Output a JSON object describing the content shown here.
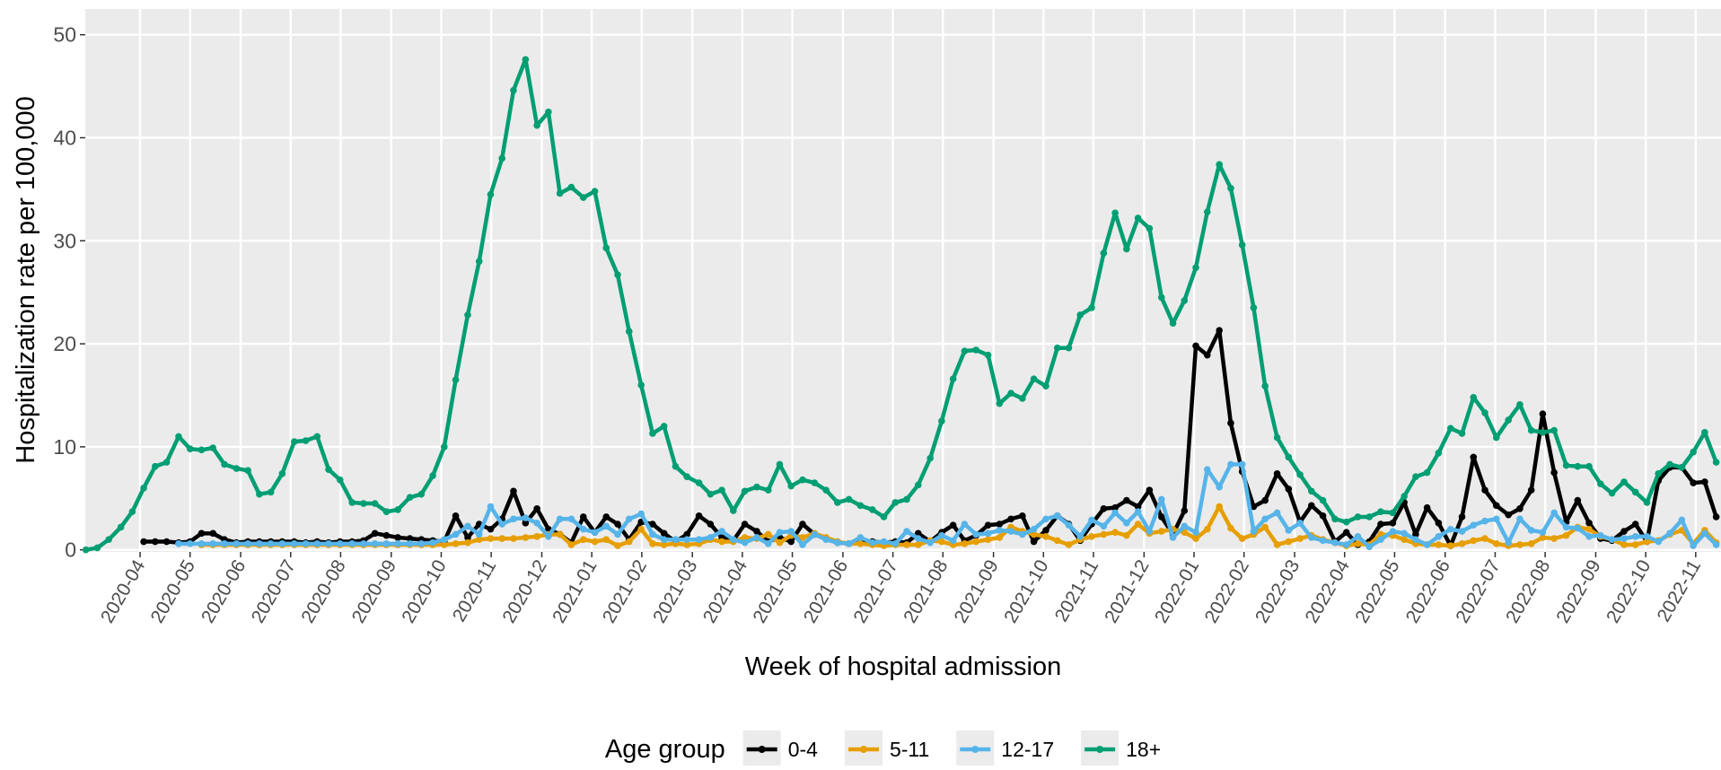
{
  "chart_data": {
    "type": "line",
    "x_label": "Week of hospital admission",
    "y_label": "Hospitalization rate per 100,000",
    "legend_title": "Age group",
    "legend_position": "bottom",
    "grid": true,
    "xlim": [
      2020.159,
      2022.875
    ],
    "ylim": [
      -0.2,
      52.5
    ],
    "yticks": [
      0,
      10,
      20,
      30,
      40,
      50
    ],
    "xticks": [
      {
        "value": 2020.25,
        "label": "2020-04"
      },
      {
        "value": 2020.333,
        "label": "2020-05"
      },
      {
        "value": 2020.417,
        "label": "2020-06"
      },
      {
        "value": 2020.5,
        "label": "2020-07"
      },
      {
        "value": 2020.583,
        "label": "2020-08"
      },
      {
        "value": 2020.667,
        "label": "2020-09"
      },
      {
        "value": 2020.75,
        "label": "2020-10"
      },
      {
        "value": 2020.833,
        "label": "2020-11"
      },
      {
        "value": 2020.917,
        "label": "2020-12"
      },
      {
        "value": 2021,
        "label": "2021-01"
      },
      {
        "value": 2021.083,
        "label": "2021-02"
      },
      {
        "value": 2021.167,
        "label": "2021-03"
      },
      {
        "value": 2021.25,
        "label": "2021-04"
      },
      {
        "value": 2021.333,
        "label": "2021-05"
      },
      {
        "value": 2021.417,
        "label": "2021-06"
      },
      {
        "value": 2021.5,
        "label": "2021-07"
      },
      {
        "value": 2021.583,
        "label": "2021-08"
      },
      {
        "value": 2021.667,
        "label": "2021-09"
      },
      {
        "value": 2021.75,
        "label": "2021-10"
      },
      {
        "value": 2021.833,
        "label": "2021-11"
      },
      {
        "value": 2021.917,
        "label": "2021-12"
      },
      {
        "value": 2022,
        "label": "2022-01"
      },
      {
        "value": 2022.083,
        "label": "2022-02"
      },
      {
        "value": 2022.167,
        "label": "2022-03"
      },
      {
        "value": 2022.25,
        "label": "2022-04"
      },
      {
        "value": 2022.333,
        "label": "2022-05"
      },
      {
        "value": 2022.417,
        "label": "2022-06"
      },
      {
        "value": 2022.5,
        "label": "2022-07"
      },
      {
        "value": 2022.583,
        "label": "2022-08"
      },
      {
        "value": 2022.667,
        "label": "2022-09"
      },
      {
        "value": 2022.75,
        "label": "2022-10"
      },
      {
        "value": 2022.833,
        "label": "2022-11"
      }
    ],
    "x": [
      2020.16,
      2020.179,
      2020.198,
      2020.218,
      2020.237,
      2020.256,
      2020.275,
      2020.294,
      2020.314,
      2020.333,
      2020.352,
      2020.371,
      2020.39,
      2020.41,
      2020.429,
      2020.448,
      2020.467,
      2020.486,
      2020.506,
      2020.525,
      2020.544,
      2020.563,
      2020.582,
      2020.602,
      2020.621,
      2020.64,
      2020.659,
      2020.678,
      2020.698,
      2020.717,
      2020.736,
      2020.755,
      2020.774,
      2020.794,
      2020.813,
      2020.832,
      2020.851,
      2020.87,
      2020.89,
      2020.909,
      2020.928,
      2020.947,
      2020.966,
      2020.986,
      2021.005,
      2021.024,
      2021.043,
      2021.062,
      2021.082,
      2021.101,
      2021.12,
      2021.139,
      2021.158,
      2021.178,
      2021.197,
      2021.216,
      2021.235,
      2021.254,
      2021.274,
      2021.293,
      2021.312,
      2021.331,
      2021.35,
      2021.37,
      2021.389,
      2021.408,
      2021.427,
      2021.446,
      2021.466,
      2021.485,
      2021.504,
      2021.523,
      2021.542,
      2021.562,
      2021.581,
      2021.6,
      2021.619,
      2021.638,
      2021.658,
      2021.677,
      2021.696,
      2021.715,
      2021.734,
      2021.754,
      2021.773,
      2021.792,
      2021.811,
      2021.83,
      2021.85,
      2021.869,
      2021.888,
      2021.907,
      2021.926,
      2021.946,
      2021.965,
      2021.984,
      2022.003,
      2022.022,
      2022.042,
      2022.061,
      2022.08,
      2022.099,
      2022.118,
      2022.138,
      2022.157,
      2022.176,
      2022.195,
      2022.214,
      2022.234,
      2022.253,
      2022.272,
      2022.291,
      2022.31,
      2022.33,
      2022.349,
      2022.368,
      2022.387,
      2022.406,
      2022.426,
      2022.445,
      2022.464,
      2022.483,
      2022.502,
      2022.522,
      2022.541,
      2022.56,
      2022.579,
      2022.598,
      2022.618,
      2022.637,
      2022.656,
      2022.675,
      2022.694,
      2022.714,
      2022.733,
      2022.752,
      2022.771,
      2022.79,
      2022.81,
      2022.829,
      2022.848,
      2022.867
    ],
    "series": [
      {
        "name": "0-4",
        "color": "#000000",
        "values": [
          null,
          null,
          null,
          null,
          null,
          0.8,
          0.8,
          0.8,
          0.7,
          0.8,
          1.6,
          1.6,
          1,
          0.7,
          0.8,
          0.8,
          0.8,
          0.8,
          0.8,
          0.7,
          0.8,
          0.7,
          0.8,
          0.8,
          0.9,
          1.6,
          1.4,
          1.2,
          1.1,
          1,
          0.9,
          0.8,
          3.3,
          1.2,
          2.5,
          2,
          3,
          5.7,
          2.6,
          4,
          2,
          1.5,
          0.7,
          3.2,
          1.7,
          3.2,
          2.5,
          1,
          2.7,
          2.5,
          1.6,
          0.8,
          1.5,
          3.3,
          2.5,
          1.2,
          0.9,
          2.5,
          1.8,
          0.8,
          1.2,
          0.8,
          2.5,
          1.5,
          1.1,
          0.7,
          0.6,
          0.8,
          0.8,
          0.7,
          0.8,
          0.7,
          1.6,
          0.8,
          1.7,
          2.4,
          0.9,
          1.4,
          2.4,
          2.5,
          3,
          3.3,
          0.8,
          1.9,
          3.3,
          2.5,
          0.9,
          2.5,
          4,
          4.1,
          4.8,
          4.2,
          5.8,
          3.2,
          1.5,
          3.8,
          19.8,
          18.9,
          21.3,
          12.3,
          7.6,
          4.2,
          4.8,
          7.4,
          5.9,
          2.7,
          4.3,
          3.3,
          0.8,
          1.7,
          0.5,
          0.8,
          2.5,
          2.6,
          4.6,
          1.5,
          4.1,
          2.6,
          0.4,
          3.2,
          9,
          5.8,
          4.3,
          3.4,
          4,
          5.8,
          13.2,
          7.5,
          2.7,
          4.8,
          2.6,
          1.1,
          0.9,
          1.8,
          2.5,
          0.8,
          6.7,
          8,
          8,
          6.5,
          6.6,
          3.2
        ]
      },
      {
        "name": "5-11",
        "color": "#E69F00",
        "values": [
          null,
          null,
          null,
          null,
          null,
          null,
          null,
          null,
          null,
          null,
          0.5,
          0.5,
          0.5,
          0.5,
          0.5,
          0.5,
          0.5,
          0.5,
          0.5,
          0.5,
          0.5,
          0.5,
          0.5,
          0.5,
          0.5,
          0.5,
          0.5,
          0.5,
          0.5,
          0.5,
          0.5,
          0.5,
          0.6,
          0.7,
          1,
          1.1,
          1.1,
          1.1,
          1.2,
          1.3,
          1.5,
          1.5,
          0.5,
          1,
          0.8,
          1,
          0.4,
          0.8,
          2,
          0.6,
          0.5,
          0.6,
          0.5,
          0.6,
          1,
          0.8,
          0.8,
          1.2,
          1.1,
          1.5,
          0.7,
          1.4,
          1.2,
          1.6,
          1.2,
          0.8,
          0.6,
          0.6,
          0.5,
          0.4,
          0.5,
          0.5,
          0.5,
          0.9,
          0.8,
          0.5,
          0.6,
          0.8,
          1,
          1.2,
          2.2,
          1.8,
          1.5,
          1.3,
          0.9,
          0.5,
          1,
          1.3,
          1.5,
          1.7,
          1.4,
          2.5,
          1.6,
          1.8,
          2,
          1.7,
          1.1,
          2,
          4.2,
          2.1,
          1.1,
          1.5,
          2.2,
          0.5,
          0.8,
          1.1,
          1.4,
          1,
          0.7,
          0.4,
          0.6,
          0.5,
          1.5,
          1.4,
          1,
          0.6,
          0.5,
          0.5,
          0.4,
          0.6,
          0.9,
          1.1,
          0.6,
          0.4,
          0.5,
          0.6,
          1.2,
          1.1,
          1.4,
          2.2,
          2,
          1.3,
          1,
          0.5,
          0.5,
          0.8,
          0.9,
          1.5,
          1.9,
          0.6,
          1.9,
          0.7
        ]
      },
      {
        "name": "12-17",
        "color": "#56B4E9",
        "values": [
          null,
          null,
          null,
          null,
          null,
          null,
          null,
          null,
          0.6,
          0.6,
          0.6,
          0.6,
          0.6,
          0.6,
          0.6,
          0.6,
          0.6,
          0.6,
          0.6,
          0.6,
          0.6,
          0.6,
          0.6,
          0.6,
          0.6,
          0.6,
          0.6,
          0.6,
          0.6,
          0.6,
          0.7,
          1,
          1.5,
          2.3,
          1.5,
          4.2,
          2.5,
          3,
          3.1,
          2.6,
          1.3,
          3,
          3,
          2,
          1.7,
          2.3,
          1.5,
          3,
          3.5,
          1.5,
          1,
          1,
          1,
          1,
          1.2,
          1.8,
          1,
          0.7,
          1.2,
          0.6,
          1.7,
          1.8,
          0.5,
          1.5,
          1,
          0.7,
          0.6,
          1.2,
          0.7,
          0.8,
          0.6,
          1.8,
          1.1,
          0.7,
          1.4,
          0.9,
          2.5,
          1.5,
          1.6,
          1.9,
          1.8,
          1.5,
          2,
          3,
          3.3,
          2.4,
          1.3,
          2.9,
          2.3,
          3.6,
          2.6,
          3.7,
          1.8,
          4.9,
          1.2,
          2.3,
          1.7,
          7.8,
          6.1,
          8.3,
          8.3,
          1.8,
          3,
          3.6,
          1.9,
          2.6,
          1.2,
          0.9,
          0.7,
          0.5,
          1.3,
          0.3,
          1,
          1.8,
          1.6,
          1,
          0.5,
          1.3,
          2,
          1.8,
          2.4,
          2.8,
          3,
          0.7,
          3,
          1.9,
          1.7,
          3.6,
          2.2,
          2.1,
          1.3,
          1.4,
          1,
          1.1,
          1.3,
          1.3,
          0.8,
          1.6,
          2.9,
          0.4,
          1.6,
          0.5
        ]
      },
      {
        "name": "18+",
        "color": "#009E73",
        "values": [
          0,
          0.2,
          1,
          2.2,
          3.7,
          6,
          8.1,
          8.5,
          11,
          9.8,
          9.7,
          9.9,
          8.3,
          7.9,
          7.7,
          5.4,
          5.6,
          7.4,
          10.5,
          10.6,
          11,
          7.8,
          6.8,
          4.6,
          4.5,
          4.5,
          3.7,
          3.9,
          5.1,
          5.4,
          7.2,
          10,
          16.5,
          22.8,
          28,
          34.5,
          38,
          44.6,
          47.6,
          41.2,
          42.5,
          34.6,
          35.2,
          34.2,
          34.8,
          29.3,
          26.7,
          21.2,
          16,
          11.3,
          12,
          8.1,
          7.1,
          6.5,
          5.4,
          5.8,
          3.8,
          5.7,
          6.1,
          5.8,
          8.3,
          6.2,
          6.8,
          6.5,
          5.8,
          4.6,
          4.9,
          4.3,
          3.9,
          3.2,
          4.6,
          4.9,
          6.3,
          8.9,
          12.5,
          16.6,
          19.3,
          19.4,
          18.9,
          14.2,
          15.2,
          14.7,
          16.6,
          15.9,
          19.6,
          19.6,
          22.8,
          23.5,
          28.8,
          32.7,
          29.2,
          32.2,
          31.2,
          24.5,
          22,
          24.2,
          27.4,
          32.8,
          37.4,
          35.1,
          29.6,
          23.5,
          15.9,
          10.9,
          9,
          7.3,
          5.7,
          4.8,
          3,
          2.7,
          3.2,
          3.2,
          3.7,
          3.6,
          5.2,
          7.1,
          7.5,
          9.4,
          11.8,
          11.3,
          14.8,
          13.3,
          10.9,
          12.6,
          14.1,
          11.6,
          11.4,
          11.6,
          8.2,
          8.1,
          8.1,
          6.4,
          5.5,
          6.6,
          5.6,
          4.6,
          7.4,
          8.3,
          8,
          9.5,
          11.4,
          8.5
        ]
      }
    ]
  }
}
